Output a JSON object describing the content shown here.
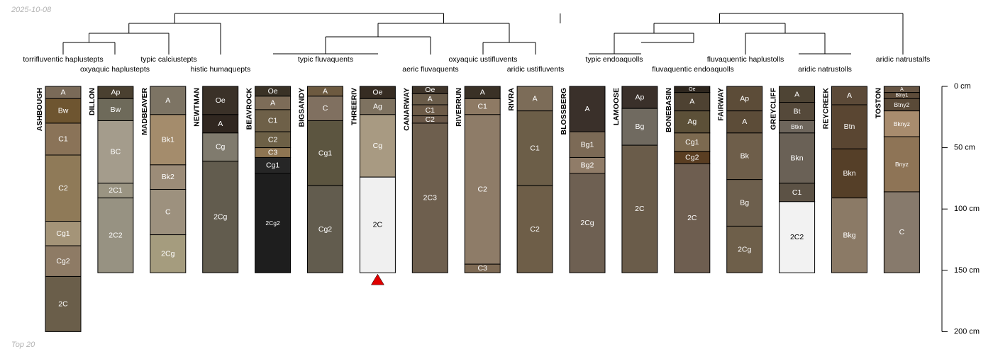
{
  "header": {
    "date": "2025-10-08"
  },
  "footer": {
    "note": "Top 20"
  },
  "chart_data": {
    "type": "soil-profile-sketch",
    "title": "",
    "depth_axis": {
      "unit": "cm",
      "min": 0,
      "max": 200,
      "ticks": [
        0,
        50,
        100,
        150,
        200
      ],
      "tick_labels": [
        "0 cm",
        "50 cm",
        "100 cm",
        "150 cm",
        "200 cm"
      ]
    },
    "profiles": [
      {
        "name": "ASHBOUGH",
        "horizons": [
          {
            "name": "A",
            "top": 0,
            "bottom": 10,
            "color": "#7a6a58"
          },
          {
            "name": "Bw",
            "top": 10,
            "bottom": 30,
            "color": "#6e5530"
          },
          {
            "name": "C1",
            "top": 30,
            "bottom": 56,
            "color": "#8a7358"
          },
          {
            "name": "C2",
            "top": 56,
            "bottom": 110,
            "color": "#8f7a58"
          },
          {
            "name": "Cg1",
            "top": 110,
            "bottom": 130,
            "color": "#a49478"
          },
          {
            "name": "Cg2",
            "top": 130,
            "bottom": 155,
            "color": "#8e7b65"
          },
          {
            "name": "2C",
            "top": 155,
            "bottom": 200,
            "color": "#6a5e4a"
          }
        ]
      },
      {
        "name": "DILLON",
        "horizons": [
          {
            "name": "Ap",
            "top": 0,
            "bottom": 10,
            "color": "#4a4030"
          },
          {
            "name": "Bw",
            "top": 10,
            "bottom": 28,
            "color": "#6e6a5a"
          },
          {
            "name": "BC",
            "top": 28,
            "bottom": 79,
            "color": "#a49c8c"
          },
          {
            "name": "2C1",
            "top": 79,
            "bottom": 91,
            "color": "#9a9482"
          },
          {
            "name": "2C2",
            "top": 91,
            "bottom": 152,
            "color": "#979282"
          }
        ]
      },
      {
        "name": "MADBEAVER",
        "horizons": [
          {
            "name": "A",
            "top": 0,
            "bottom": 23,
            "color": "#7d7464"
          },
          {
            "name": "Bk1",
            "top": 23,
            "bottom": 64,
            "color": "#a48c6c"
          },
          {
            "name": "Bk2",
            "top": 64,
            "bottom": 84,
            "color": "#9c8c78"
          },
          {
            "name": "C",
            "top": 84,
            "bottom": 121,
            "color": "#9d917e"
          },
          {
            "name": "2Cg",
            "top": 121,
            "bottom": 152,
            "color": "#a59c7e"
          }
        ]
      },
      {
        "name": "NEWTMAN",
        "horizons": [
          {
            "name": "Oe",
            "top": 0,
            "bottom": 23,
            "color": "#3a3128"
          },
          {
            "name": "A",
            "top": 23,
            "bottom": 38,
            "color": "#302720"
          },
          {
            "name": "Cg",
            "top": 38,
            "bottom": 61,
            "color": "#807b6e"
          },
          {
            "name": "2Cg",
            "top": 61,
            "bottom": 152,
            "color": "#625c4e"
          }
        ]
      },
      {
        "name": "BEAVROCK",
        "horizons": [
          {
            "name": "Oe",
            "top": 0,
            "bottom": 8,
            "color": "#3a3226"
          },
          {
            "name": "A",
            "top": 8,
            "bottom": 19,
            "color": "#7d6c58"
          },
          {
            "name": "C1",
            "top": 19,
            "bottom": 37,
            "color": "#6e6048"
          },
          {
            "name": "C2",
            "top": 37,
            "bottom": 50,
            "color": "#6d6046"
          },
          {
            "name": "C3",
            "top": 50,
            "bottom": 58,
            "color": "#8e7552"
          },
          {
            "name": "Cg1",
            "top": 58,
            "bottom": 71,
            "color": "#262626"
          },
          {
            "name": "2Cg2",
            "top": 71,
            "bottom": 152,
            "color": "#1e1e1e"
          }
        ]
      },
      {
        "name": "BIGSANDY",
        "horizons": [
          {
            "name": "A",
            "top": 0,
            "bottom": 8,
            "color": "#6d5a40"
          },
          {
            "name": "C",
            "top": 8,
            "bottom": 28,
            "color": "#807060"
          },
          {
            "name": "Cg1",
            "top": 28,
            "bottom": 81,
            "color": "#5c5540"
          },
          {
            "name": "Cg2",
            "top": 81,
            "bottom": 152,
            "color": "#625c4e"
          }
        ]
      },
      {
        "name": "THREERIV",
        "horizons": [
          {
            "name": "Oe",
            "top": 0,
            "bottom": 10,
            "color": "#362c22"
          },
          {
            "name": "Ag",
            "top": 10,
            "bottom": 23,
            "color": "#7e7260"
          },
          {
            "name": "Cg",
            "top": 23,
            "bottom": 74,
            "color": "#a89a82"
          },
          {
            "name": "2C",
            "top": 74,
            "bottom": 152,
            "color": "#f0f0f0"
          }
        ]
      },
      {
        "name": "CANARWAY",
        "horizons": [
          {
            "name": "Oe",
            "top": 0,
            "bottom": 6,
            "color": "#3f352a"
          },
          {
            "name": "A",
            "top": 6,
            "bottom": 15,
            "color": "#6a5c4a"
          },
          {
            "name": "C1",
            "top": 15,
            "bottom": 24,
            "color": "#6d5b48"
          },
          {
            "name": "C2",
            "top": 24,
            "bottom": 30,
            "color": "#6a5848"
          },
          {
            "name": "2C3",
            "top": 30,
            "bottom": 152,
            "color": "#6e5f4e"
          }
        ]
      },
      {
        "name": "RIVERRUN",
        "horizons": [
          {
            "name": "A",
            "top": 0,
            "bottom": 10,
            "color": "#3a3126"
          },
          {
            "name": "C1",
            "top": 10,
            "bottom": 23,
            "color": "#8e7a64"
          },
          {
            "name": "C2",
            "top": 23,
            "bottom": 145,
            "color": "#8e7c68"
          },
          {
            "name": "C3",
            "top": 145,
            "bottom": 152,
            "color": "#7e6a54"
          }
        ]
      },
      {
        "name": "RIVRA",
        "horizons": [
          {
            "name": "A",
            "top": 0,
            "bottom": 20,
            "color": "#7c6c58"
          },
          {
            "name": "C1",
            "top": 20,
            "bottom": 81,
            "color": "#6c5e48"
          },
          {
            "name": "C2",
            "top": 81,
            "bottom": 152,
            "color": "#6e5e48"
          }
        ]
      },
      {
        "name": "BLOSSBERG",
        "horizons": [
          {
            "name": "A",
            "top": 0,
            "bottom": 37,
            "color": "#3a302a"
          },
          {
            "name": "Bg1",
            "top": 37,
            "bottom": 58,
            "color": "#7c6a56"
          },
          {
            "name": "Bg2",
            "top": 58,
            "bottom": 71,
            "color": "#907c68"
          },
          {
            "name": "2Cg",
            "top": 71,
            "bottom": 152,
            "color": "#6e6052"
          }
        ]
      },
      {
        "name": "LAMOOSE",
        "horizons": [
          {
            "name": "Ap",
            "top": 0,
            "bottom": 18,
            "color": "#3a302a"
          },
          {
            "name": "Bg",
            "top": 18,
            "bottom": 48,
            "color": "#706a60"
          },
          {
            "name": "2C",
            "top": 48,
            "bottom": 152,
            "color": "#6a5c4a"
          }
        ]
      },
      {
        "name": "BONEBASIN",
        "horizons": [
          {
            "name": "Oe",
            "top": 0,
            "bottom": 5,
            "color": "#2e261e"
          },
          {
            "name": "A",
            "top": 5,
            "bottom": 20,
            "color": "#4e4232"
          },
          {
            "name": "Ag",
            "top": 20,
            "bottom": 38,
            "color": "#5c5038"
          },
          {
            "name": "Cg1",
            "top": 38,
            "bottom": 53,
            "color": "#7c6a50"
          },
          {
            "name": "Cg2",
            "top": 53,
            "bottom": 63,
            "color": "#5a3e22"
          },
          {
            "name": "2C",
            "top": 63,
            "bottom": 152,
            "color": "#6e5e50"
          }
        ]
      },
      {
        "name": "FAIRWAY",
        "horizons": [
          {
            "name": "Ap",
            "top": 0,
            "bottom": 20,
            "color": "#5c4c38"
          },
          {
            "name": "A",
            "top": 20,
            "bottom": 38,
            "color": "#5c4c38"
          },
          {
            "name": "Bk",
            "top": 38,
            "bottom": 76,
            "color": "#6e5e4a"
          },
          {
            "name": "Bg",
            "top": 76,
            "bottom": 114,
            "color": "#6d5f4d"
          },
          {
            "name": "2Cg",
            "top": 114,
            "bottom": 152,
            "color": "#6e5f4a"
          }
        ]
      },
      {
        "name": "GREYCLIFF",
        "horizons": [
          {
            "name": "A",
            "top": 0,
            "bottom": 13,
            "color": "#4e4434"
          },
          {
            "name": "Bt",
            "top": 13,
            "bottom": 28,
            "color": "#55493a"
          },
          {
            "name": "Btkn",
            "top": 28,
            "bottom": 38,
            "color": "#6e665c"
          },
          {
            "name": "Bkn",
            "top": 38,
            "bottom": 79,
            "color": "#6a6156"
          },
          {
            "name": "C1",
            "top": 79,
            "bottom": 94,
            "color": "#5c5245"
          },
          {
            "name": "2C2",
            "top": 94,
            "bottom": 152,
            "color": "#f2f2f2"
          }
        ]
      },
      {
        "name": "REYCREEK",
        "horizons": [
          {
            "name": "A",
            "top": 0,
            "bottom": 15,
            "color": "#5c4a38"
          },
          {
            "name": "Btn",
            "top": 15,
            "bottom": 51,
            "color": "#5a4632"
          },
          {
            "name": "Bkn",
            "top": 51,
            "bottom": 91,
            "color": "#553f28"
          },
          {
            "name": "Bkg",
            "top": 91,
            "bottom": 152,
            "color": "#8b7a66"
          }
        ]
      },
      {
        "name": "TOSTON",
        "horizons": [
          {
            "name": "A",
            "top": 0,
            "bottom": 5,
            "color": "#675544"
          },
          {
            "name": "Btny1",
            "top": 5,
            "bottom": 10,
            "color": "#5e4c3a"
          },
          {
            "name": "Btny2",
            "top": 10,
            "bottom": 20,
            "color": "#5a4a38"
          },
          {
            "name": "Bknyz",
            "top": 20,
            "bottom": 41,
            "color": "#a88c6e"
          },
          {
            "name": "Bnyz",
            "top": 41,
            "bottom": 86,
            "color": "#8e7456"
          },
          {
            "name": "C",
            "top": 86,
            "bottom": 152,
            "color": "#877a6c"
          }
        ]
      }
    ],
    "markers": [
      {
        "profile": "THREERIV",
        "type": "triangle",
        "color": "#e00000"
      }
    ],
    "dendrogram": {
      "taxa": [
        "torrifluventic haplustepts",
        "oxyaquic haplustepts",
        "typic calciustepts",
        "histic humaquepts",
        "typic fluvaquents",
        "aeric fluvaquents",
        "oxyaquic ustifluvents",
        "aridic ustifluvents",
        "typic endoaquolls",
        "fluvaquentic endoaquolls",
        "fluvaquentic haplustolls",
        "aridic natrustolls",
        "aridic natrustalfs"
      ]
    }
  }
}
